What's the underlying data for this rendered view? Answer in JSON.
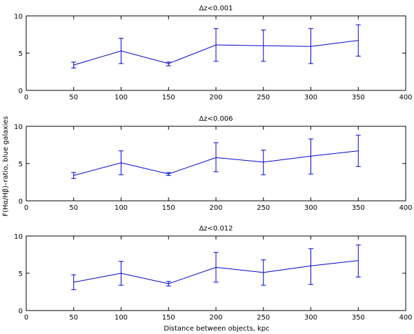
{
  "figure": {
    "xlabel": "Distance between objects, kpc",
    "ylabel": "F(Hα/Hβ)–ratio, blue galaxies"
  },
  "colors": {
    "series": "#0000cc",
    "axes": "#000000",
    "background": "#ffffff"
  },
  "chart_data": [
    {
      "type": "line",
      "title": "Δz<0.001",
      "x": [
        50,
        100,
        150,
        200,
        250,
        300,
        350
      ],
      "y": [
        3.4,
        5.3,
        3.6,
        6.1,
        6.0,
        5.9,
        6.7
      ],
      "err_low": [
        3.0,
        3.6,
        3.3,
        3.9,
        3.9,
        3.6,
        4.6
      ],
      "err_high": [
        3.8,
        7.0,
        3.8,
        8.3,
        8.1,
        8.3,
        8.8
      ],
      "xlim": [
        0,
        400
      ],
      "ylim": [
        0,
        10
      ],
      "xticks": [
        0,
        50,
        100,
        150,
        200,
        250,
        300,
        350,
        400
      ],
      "yticks": [
        0,
        5,
        10
      ],
      "grid": false
    },
    {
      "type": "line",
      "title": "Δz<0.006",
      "x": [
        50,
        100,
        150,
        200,
        250,
        300,
        350
      ],
      "y": [
        3.4,
        5.1,
        3.6,
        5.8,
        5.2,
        6.0,
        6.7
      ],
      "err_low": [
        3.0,
        3.5,
        3.4,
        3.9,
        3.5,
        3.6,
        4.6
      ],
      "err_high": [
        3.8,
        6.7,
        3.8,
        7.8,
        6.8,
        8.3,
        8.8
      ],
      "xlim": [
        0,
        400
      ],
      "ylim": [
        0,
        10
      ],
      "xticks": [
        0,
        50,
        100,
        150,
        200,
        250,
        300,
        350,
        400
      ],
      "yticks": [
        0,
        5,
        10
      ],
      "grid": false
    },
    {
      "type": "line",
      "title": "Δz<0.012",
      "x": [
        50,
        100,
        150,
        200,
        250,
        300,
        350
      ],
      "y": [
        3.8,
        5.0,
        3.6,
        5.8,
        5.1,
        6.0,
        6.7
      ],
      "err_low": [
        2.8,
        3.4,
        3.3,
        3.8,
        3.4,
        3.5,
        4.5
      ],
      "err_high": [
        4.8,
        6.6,
        3.9,
        7.8,
        6.8,
        8.3,
        8.8
      ],
      "xlim": [
        0,
        400
      ],
      "ylim": [
        0,
        10
      ],
      "xticks": [
        0,
        50,
        100,
        150,
        200,
        250,
        300,
        350,
        400
      ],
      "yticks": [
        0,
        5,
        10
      ],
      "grid": false
    }
  ]
}
